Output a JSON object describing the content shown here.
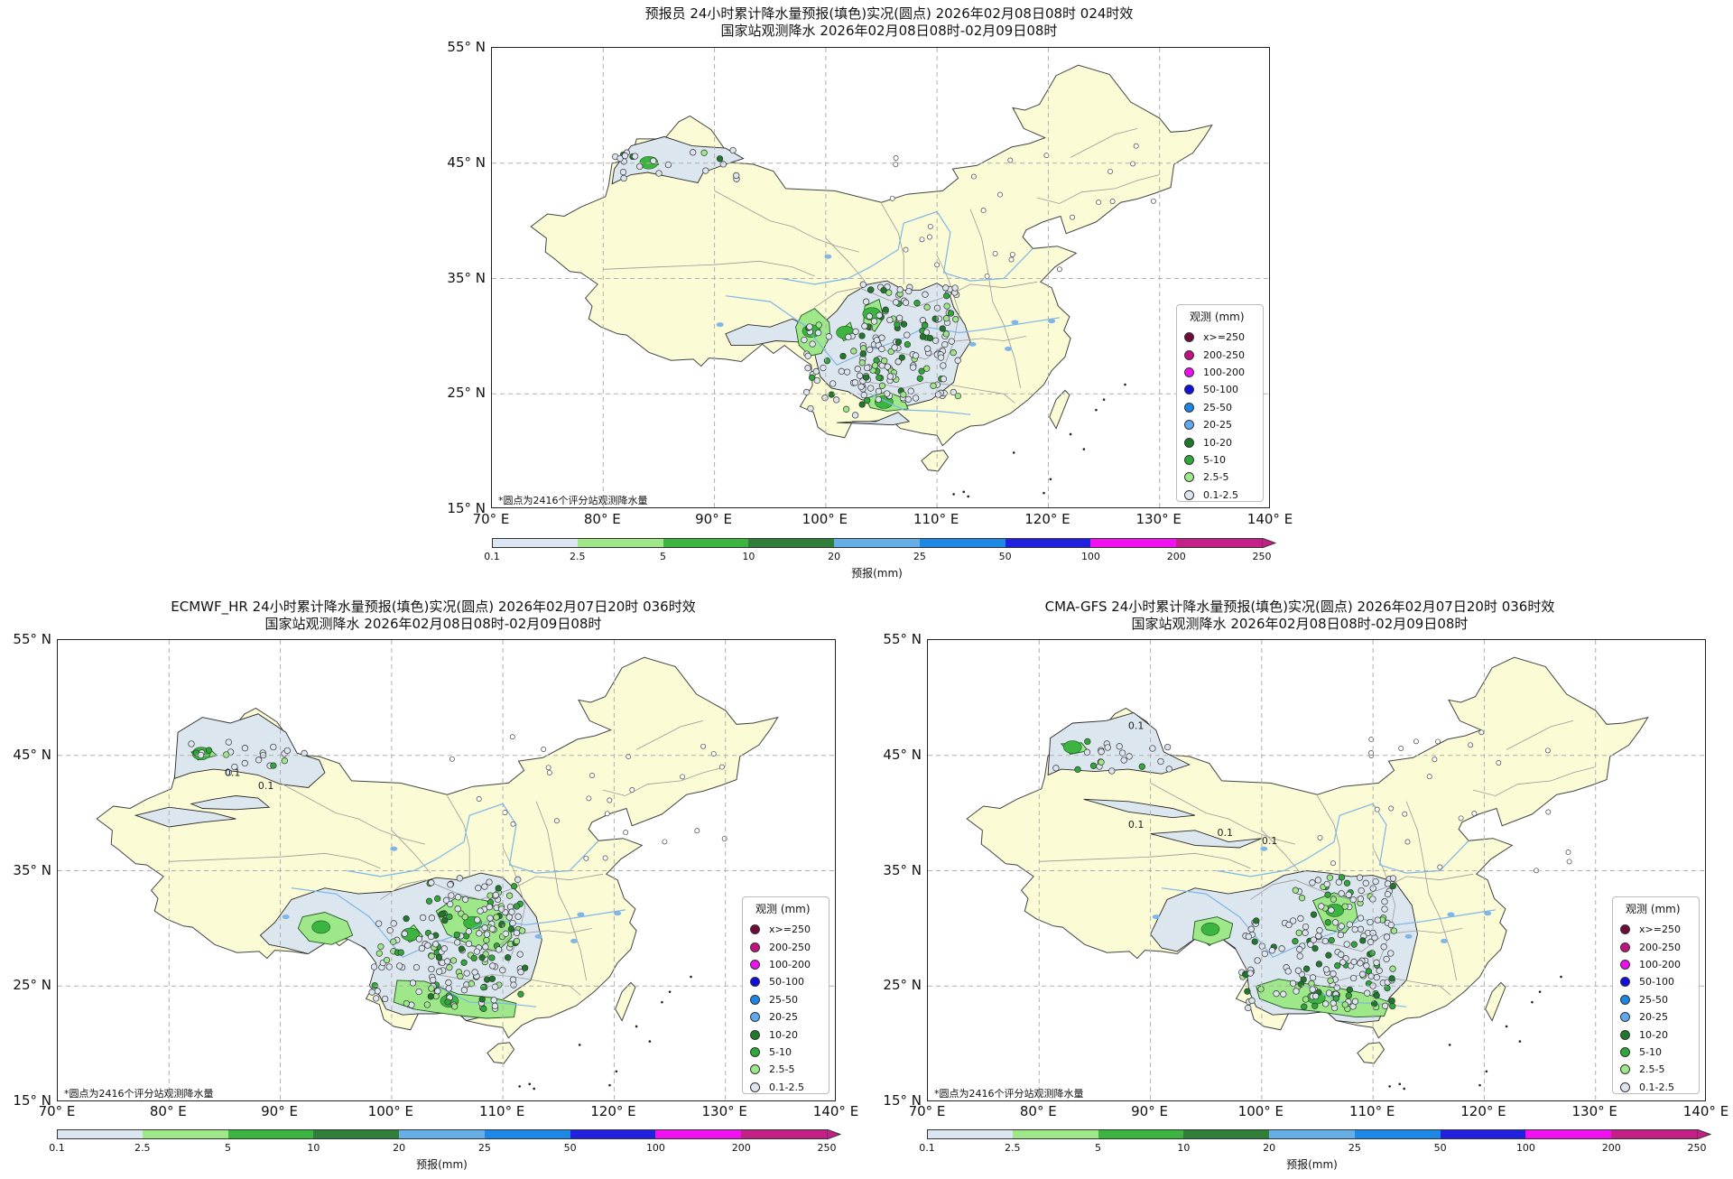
{
  "panels": [
    {
      "title_line1": "预报员 24小时累计降水量预报(填色)实况(圆点) 2026年02月08日08时 024时效",
      "title_line2": "国家站观测降水 2026年02月08日08时-02月09日08时"
    },
    {
      "title_line1": "ECMWF_HR 24小时累计降水量预报(填色)实况(圆点) 2026年02月07日20时 036时效",
      "title_line2": "国家站观测降水 2026年02月08日08时-02月09日08时"
    },
    {
      "title_line1": "CMA-GFS 24小时累计降水量预报(填色)实况(圆点) 2026年02月07日20时 036时效",
      "title_line2": "国家站观测降水 2026年02月08日08时-02月09日08时"
    }
  ],
  "map": {
    "lat_labels": [
      "55° N",
      "45° N",
      "35° N",
      "25° N",
      "15° N"
    ],
    "lon_labels": [
      "70° E",
      "80° E",
      "90° E",
      "100° E",
      "110° E",
      "120° E",
      "130° E",
      "140° E"
    ],
    "note": "*圆点为2416个评分站观测降水量",
    "contour_label": "0.1"
  },
  "legend": {
    "title": "观测 (mm)",
    "items": [
      {
        "label": "x>=250",
        "color": "#6e0a3a"
      },
      {
        "label": "200-250",
        "color": "#c2127f"
      },
      {
        "label": "100-200",
        "color": "#f00ef0"
      },
      {
        "label": "50-100",
        "color": "#1010d8"
      },
      {
        "label": "25-50",
        "color": "#1a86e6"
      },
      {
        "label": "20-25",
        "color": "#5fa9ee"
      },
      {
        "label": "10-20",
        "color": "#1e7a2a"
      },
      {
        "label": "5-10",
        "color": "#2fa83a"
      },
      {
        "label": "2.5-5",
        "color": "#9ee88a"
      },
      {
        "label": "0.1-2.5",
        "color": "#dde6f0"
      }
    ]
  },
  "colorbar": {
    "label": "预报(mm)",
    "ticks": [
      "0.1",
      "2.5",
      "5",
      "10",
      "20",
      "25",
      "50",
      "100",
      "200",
      "250"
    ],
    "colors": [
      "#dce6f2",
      "#9ee88a",
      "#3cb540",
      "#2f7f3a",
      "#66aee6",
      "#1e88e6",
      "#2020e0",
      "#f010f0",
      "#c41f86"
    ]
  },
  "colors": {
    "land": "#fbfbd6",
    "sea": "#ffffff",
    "light_rain": "#dce6ee",
    "border": "#444444",
    "province": "#9a9a9a",
    "river": "#7fb6e6",
    "grid": "#b0b0b0"
  }
}
